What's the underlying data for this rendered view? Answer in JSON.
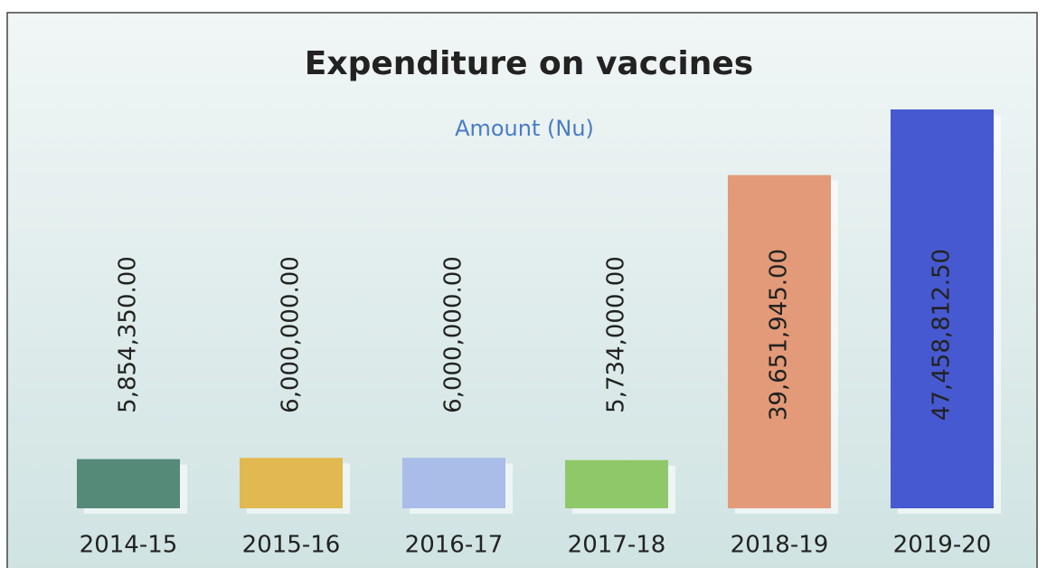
{
  "chart_data": {
    "type": "bar",
    "title": "Expenditure on vaccines",
    "subtitle": "Amount (Nu)",
    "categories": [
      "2014-15",
      "2015-16",
      "2016-17",
      "2017-18",
      "2018-19",
      "2019-20"
    ],
    "values": [
      5854350,
      6000000,
      6000000,
      5734000,
      39651945,
      47458812.5
    ],
    "value_labels": [
      "5,854,350.00",
      "6,000,000.00",
      "6,000,000.00",
      "5,734,000.00",
      "39,651,945.00",
      "47,458,812.50"
    ],
    "colors": [
      "#568a78",
      "#e2b850",
      "#a9bde8",
      "#8fc868",
      "#e39a78",
      "#4759d0"
    ]
  }
}
